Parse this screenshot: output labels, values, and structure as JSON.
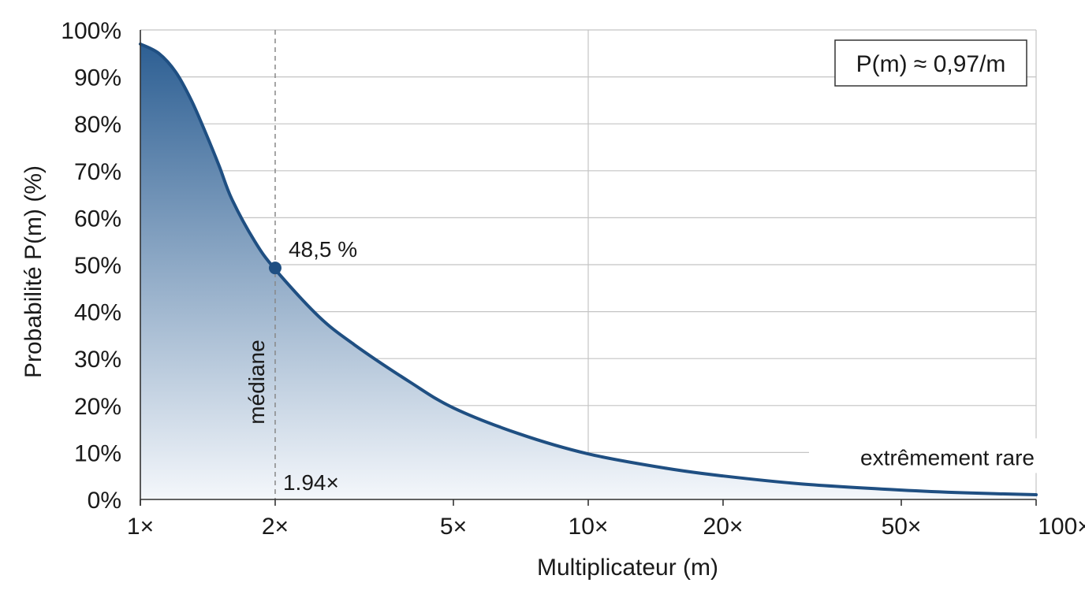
{
  "chart_data": {
    "type": "area",
    "title": "",
    "xlabel": "Multiplicateur (m)",
    "ylabel": "Probabilité P(m) (%)",
    "x_scale": "log",
    "xlim": [
      1,
      100
    ],
    "ylim": [
      0,
      100
    ],
    "grid": true,
    "x_ticks": [
      {
        "value": 1,
        "label": "1×"
      },
      {
        "value": 2,
        "label": "2×"
      },
      {
        "value": 5,
        "label": "5×"
      },
      {
        "value": 10,
        "label": "10×"
      },
      {
        "value": 20,
        "label": "20×"
      },
      {
        "value": 50,
        "label": "50×"
      },
      {
        "value": 100,
        "label": "100×"
      }
    ],
    "y_ticks": [
      {
        "value": 0,
        "label": "0%"
      },
      {
        "value": 10,
        "label": "10%"
      },
      {
        "value": 20,
        "label": "20%"
      },
      {
        "value": 30,
        "label": "30%"
      },
      {
        "value": 40,
        "label": "40%"
      },
      {
        "value": 50,
        "label": "50%"
      },
      {
        "value": 60,
        "label": "60%"
      },
      {
        "value": 70,
        "label": "70%"
      },
      {
        "value": 80,
        "label": "80%"
      },
      {
        "value": 90,
        "label": "90%"
      },
      {
        "value": 100,
        "label": "100%"
      }
    ],
    "x_gridlines": [
      1,
      10,
      100
    ],
    "series": [
      {
        "x": [
          1,
          1.1,
          1.2,
          1.3,
          1.4,
          1.5,
          1.6,
          1.8,
          2,
          2.5,
          3,
          4,
          5,
          7,
          10,
          15,
          20,
          30,
          50,
          70,
          100
        ],
        "values": [
          97,
          95,
          91,
          85,
          78,
          71,
          64,
          55,
          49,
          39,
          33,
          25,
          19.5,
          14,
          9.7,
          6.6,
          5,
          3.3,
          2,
          1.4,
          1
        ],
        "color": "#1f4f82"
      }
    ],
    "fill_gradient": {
      "top": "#2d5f93",
      "bottom": "#f4f7fb"
    },
    "median_line": {
      "x": 2
    },
    "annotations": [
      {
        "type": "point",
        "x": 2,
        "y": 49.3,
        "label": "48,5 %"
      },
      {
        "type": "text",
        "label": "médiane"
      },
      {
        "type": "text",
        "label": "1.94×"
      },
      {
        "type": "text",
        "label": "extrêmement rare"
      }
    ],
    "formula_box": "P(m) ≈ 0,97/m"
  }
}
